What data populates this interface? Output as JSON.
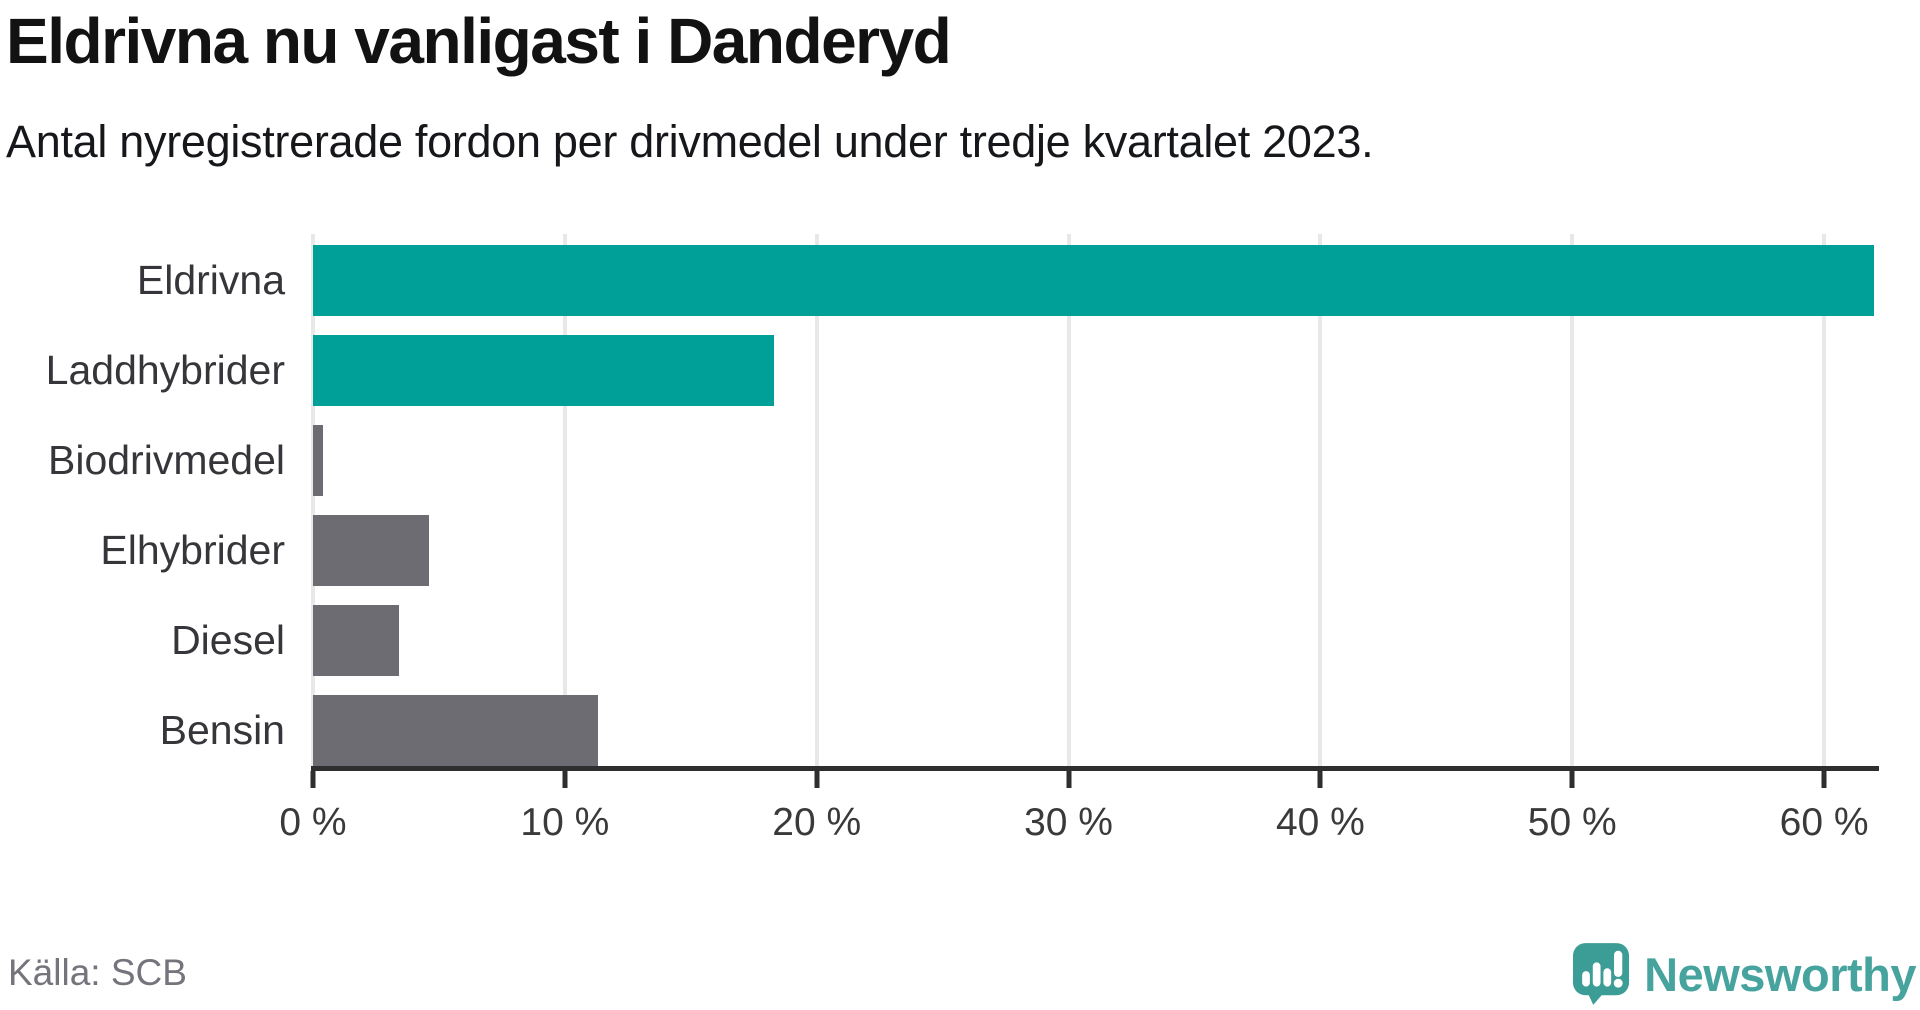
{
  "header": {
    "title": "Eldrivna nu vanligast i Danderyd",
    "subtitle": "Antal nyregistrerade fordon per drivmedel under tredje kvartalet 2023."
  },
  "footer": {
    "source": "Källa: SCB",
    "brand_name": "Newsworthy"
  },
  "colors": {
    "teal_bar": "#00a099",
    "gray_bar": "#6c6c72",
    "gridline": "#e8e8e8",
    "axis": "#2e2e2e",
    "title_text": "#121212",
    "label_text": "#35353a",
    "muted_text": "#74747c",
    "brand_teal": "#3c9d96",
    "brand_text": "#47a39e"
  },
  "icons": {
    "brand_logo": "newsworthy-speech-bubble-bar-chart-icon"
  },
  "chart_data": {
    "type": "bar",
    "orientation": "horizontal",
    "title": "Eldrivna nu vanligast i Danderyd",
    "subtitle": "Antal nyregistrerade fordon per drivmedel under tredje kvartalet 2023.",
    "categories": [
      "Eldrivna",
      "Laddhybrider",
      "Biodrivmedel",
      "Elhybrider",
      "Diesel",
      "Bensin"
    ],
    "values": [
      62.0,
      18.3,
      0.4,
      4.6,
      3.4,
      11.3
    ],
    "unit": "%",
    "bar_colors": [
      "#00a099",
      "#00a099",
      "#6c6c72",
      "#6c6c72",
      "#6c6c72",
      "#6c6c72"
    ],
    "xlabel": "",
    "ylabel": "",
    "xlim": [
      0,
      62.1
    ],
    "x_tick_values": [
      0,
      10,
      20,
      30,
      40,
      50,
      60
    ],
    "x_tick_labels": [
      "0 %",
      "10 %",
      "20 %",
      "30 %",
      "40 %",
      "50 %",
      "60 %"
    ],
    "grid": true,
    "legend": false,
    "source_note": "Källa: SCB"
  }
}
